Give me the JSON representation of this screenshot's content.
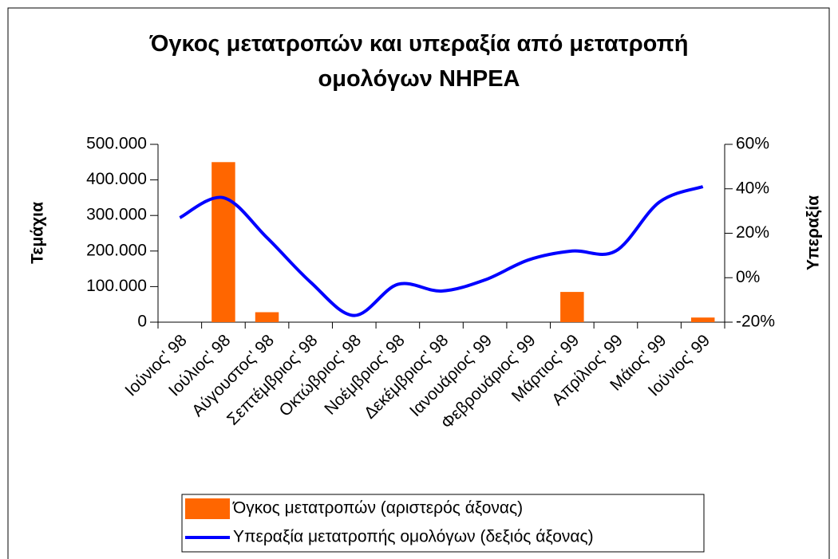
{
  "chart_data": {
    "type": "bar",
    "title": "Όγκος μετατροπών και υπεραξία από μετατροπή ομολόγων ΝΗΡΕΑ",
    "y_label": "Τεμάχια",
    "y2_label": "Υπεραξία",
    "categories": [
      "Ιούνιος' 98",
      "Ιούλιος' 98",
      "Αύγουστος' 98",
      "Σεπτέμβριος' 98",
      "Οκτώβριος' 98",
      "Νοέμβριος' 98",
      "Δεκέμβριος' 98",
      "Ιανουάριος' 99",
      "Φεβρουάριος' 99",
      "Μάρτιος' 99",
      "Απρίλιος' 99",
      "Μάιος' 99",
      "Ιούνιος' 99"
    ],
    "series": [
      {
        "name": "Όγκος μετατροπών (αριστερός άξονας)",
        "type": "bar",
        "color": "#ff6600",
        "values": [
          0,
          450000,
          28000,
          0,
          0,
          0,
          0,
          0,
          0,
          85000,
          0,
          0,
          13000
        ]
      },
      {
        "name": "Υπεραξία μετατροπής ομολόγων (δεξιός άξονας)",
        "type": "line",
        "axis": "y2",
        "color": "#0000ff",
        "values": [
          27,
          36,
          18,
          -2,
          -17,
          -3,
          -6,
          -1,
          8,
          12,
          12,
          34,
          41
        ]
      }
    ],
    "ylim": [
      0,
      500000
    ],
    "yticks": [
      0,
      {
        "value": 100000,
        "label": "100.000"
      },
      {
        "value": 200000,
        "label": "200.000"
      },
      {
        "value": 300000,
        "label": "300.000"
      },
      {
        "value": 400000,
        "label": "400.000"
      },
      {
        "value": 500000,
        "label": "500.000"
      }
    ],
    "y2lim": [
      -20,
      60
    ],
    "y2ticks": [
      {
        "value": -20,
        "label": "-20%"
      },
      {
        "value": 0,
        "label": "0%"
      },
      {
        "value": 20,
        "label": "20%"
      },
      {
        "value": 40,
        "label": "40%"
      },
      {
        "value": 60,
        "label": "60%"
      }
    ],
    "legend": "bottom"
  }
}
